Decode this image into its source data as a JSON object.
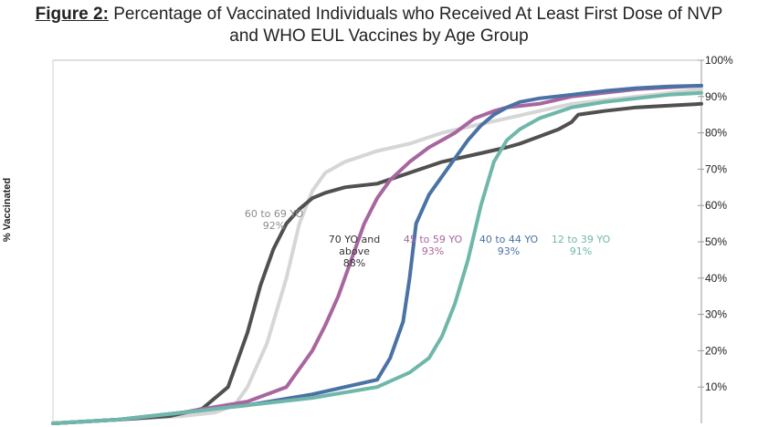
{
  "figure": {
    "label": "Figure 2:",
    "title_line1": "Percentage of Vaccinated Individuals who Received At Least First Dose of NVP",
    "title_line2": "and WHO EUL Vaccines by Age Group"
  },
  "chart_data": {
    "type": "line",
    "title": "Figure 2: Percentage of Vaccinated Individuals who Received At Least First Dose of NVP and WHO EUL Vaccines by Age Group",
    "xlabel": "",
    "ylabel": "% Vaccinated",
    "ylim": [
      0,
      100
    ],
    "y_ticks": [
      "10%",
      "20%",
      "30%",
      "40%",
      "50%",
      "60%",
      "70%",
      "80%",
      "90%",
      "100%"
    ],
    "y_axis_side": "right",
    "grid": false,
    "x_range": [
      0,
      100
    ],
    "series": [
      {
        "name": "60 to 69 YO",
        "final_label": "92%",
        "color": "#d6d6d6",
        "x": [
          0,
          10,
          20,
          25,
          28,
          30,
          33,
          36,
          38,
          40,
          42,
          45,
          50,
          55,
          60,
          65,
          70,
          75,
          80,
          85,
          90,
          95,
          100
        ],
        "y": [
          0,
          1,
          2,
          3,
          5,
          10,
          22,
          40,
          55,
          64,
          69,
          72,
          75,
          77,
          80,
          82,
          84,
          86,
          88,
          89,
          90,
          91,
          92
        ]
      },
      {
        "name": "70 YO and above",
        "final_label": "88%",
        "color": "#505050",
        "x": [
          0,
          10,
          18,
          23,
          27,
          30,
          32,
          34,
          36,
          38,
          40,
          42,
          45,
          50,
          55,
          60,
          65,
          70,
          72,
          75,
          78,
          80,
          81,
          85,
          90,
          95,
          100
        ],
        "y": [
          0,
          1,
          2,
          4,
          10,
          25,
          38,
          48,
          55,
          59,
          62,
          63.5,
          65,
          66,
          69,
          72,
          74,
          76,
          77,
          79,
          81,
          83,
          85,
          86,
          87,
          87.5,
          88
        ]
      },
      {
        "name": "45 to 59 YO",
        "final_label": "93%",
        "color": "#a8669e",
        "x": [
          0,
          10,
          20,
          30,
          36,
          40,
          42,
          44,
          46,
          48,
          50,
          52,
          55,
          58,
          60,
          62,
          65,
          68,
          70,
          75,
          80,
          85,
          90,
          95,
          100
        ],
        "y": [
          0,
          1,
          3,
          6,
          10,
          20,
          27,
          35,
          45,
          55,
          62,
          67,
          72,
          76,
          78,
          80,
          84,
          86,
          87,
          88,
          90,
          91,
          92,
          92.5,
          93
        ]
      },
      {
        "name": "40 to 44 YO",
        "final_label": "93%",
        "color": "#4a72a4",
        "x": [
          0,
          10,
          20,
          30,
          40,
          50,
          52,
          54,
          55,
          56,
          58,
          60,
          62,
          64,
          66,
          68,
          70,
          72,
          75,
          80,
          85,
          90,
          95,
          100
        ],
        "y": [
          0,
          1,
          3,
          5,
          8,
          12,
          18,
          28,
          40,
          55,
          63,
          68,
          73,
          78,
          82,
          85,
          87,
          88.5,
          89.5,
          90.5,
          91.5,
          92.3,
          92.8,
          93
        ]
      },
      {
        "name": "12 to 39 YO",
        "final_label": "91%",
        "color": "#6fb7aa",
        "x": [
          0,
          10,
          20,
          30,
          40,
          50,
          55,
          58,
          60,
          62,
          64,
          66,
          68,
          70,
          72,
          75,
          80,
          85,
          90,
          95,
          100
        ],
        "y": [
          0,
          1,
          3,
          5,
          7,
          10,
          14,
          18,
          24,
          33,
          45,
          60,
          72,
          78,
          81,
          84,
          87,
          88.5,
          89.5,
          90.5,
          91
        ]
      }
    ],
    "annotations": [
      {
        "series": "60 to 69 YO",
        "lines": [
          "60 to 69 YO",
          "92%"
        ],
        "color": "#8c8c8c"
      },
      {
        "series": "70 YO and above",
        "lines": [
          "70 YO and",
          "above",
          "88%"
        ],
        "color": "#333333"
      },
      {
        "series": "45 to 59 YO",
        "lines": [
          "45 to 59 YO",
          "93%"
        ],
        "color": "#a8669e"
      },
      {
        "series": "40 to 44 YO",
        "lines": [
          "40 to 44 YO",
          "93%"
        ],
        "color": "#4a72a4"
      },
      {
        "series": "12 to 39 YO",
        "lines": [
          "12 to 39 YO",
          "91%"
        ],
        "color": "#6fb7aa"
      }
    ]
  }
}
